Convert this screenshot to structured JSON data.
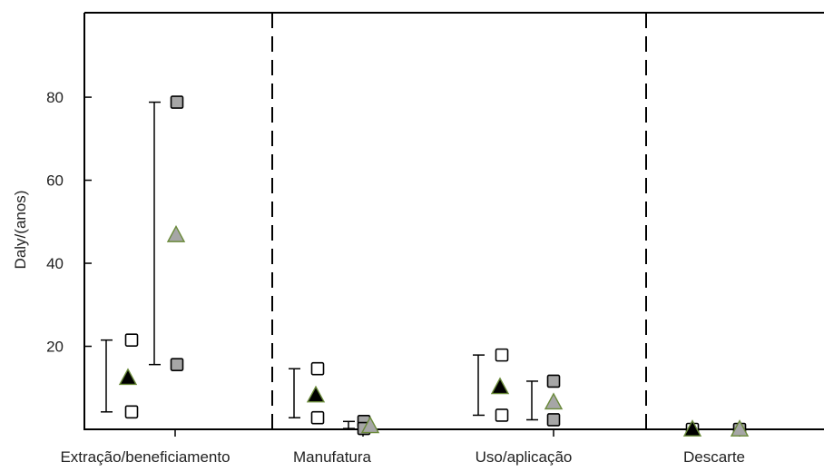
{
  "chart_data": {
    "type": "scatter",
    "title": "",
    "xlabel": "",
    "ylabel": "Daly/(anos)",
    "ylim": [
      0,
      92
    ],
    "yticks": [
      20,
      40,
      60,
      80
    ],
    "grid": false,
    "categories": [
      "Extração/beneficiamento",
      "Manufatura",
      "Uso/aplicação",
      "Descarte"
    ],
    "separators": "dashed vertical lines between stages",
    "series": [
      {
        "marker": "triangle",
        "color": "#000000",
        "values": [
          12.5,
          8.3,
          10.3,
          0.1
        ],
        "ranges": [
          [
            4.2,
            21.5
          ],
          [
            2.8,
            14.6
          ],
          [
            3.4,
            17.9
          ],
          [
            0,
            0
          ]
        ]
      },
      {
        "marker": "triangle",
        "color": "#a6a6a6",
        "values": [
          46.9,
          0.9,
          6.6,
          0.1
        ],
        "ranges": [
          [
            15.6,
            78.8
          ],
          [
            0.2,
            1.9
          ],
          [
            2.3,
            11.6
          ],
          [
            0,
            0
          ]
        ]
      }
    ],
    "colors": {
      "axis": "#000000",
      "open_marker": "#ffffff",
      "outline": "#000000",
      "triangle_edge": "#6a8a3a"
    }
  }
}
